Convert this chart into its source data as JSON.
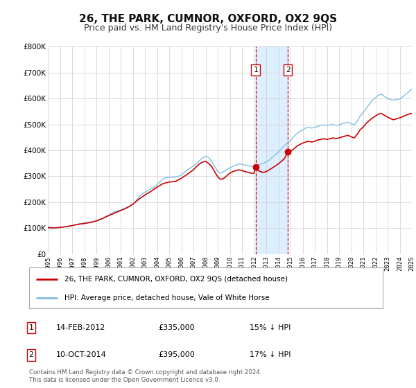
{
  "title": "26, THE PARK, CUMNOR, OXFORD, OX2 9QS",
  "subtitle": "Price paid vs. HM Land Registry's House Price Index (HPI)",
  "title_fontsize": 11,
  "subtitle_fontsize": 9,
  "background_color": "#ffffff",
  "plot_bg_color": "#ffffff",
  "grid_color": "#cccccc",
  "ylim": [
    0,
    800000
  ],
  "yticks": [
    0,
    100000,
    200000,
    300000,
    400000,
    500000,
    600000,
    700000,
    800000
  ],
  "ytick_labels": [
    "£0",
    "£100K",
    "£200K",
    "£300K",
    "£400K",
    "£500K",
    "£600K",
    "£700K",
    "£800K"
  ],
  "xmin_year": 1995,
  "xmax_year": 2025,
  "xticks": [
    1995,
    1996,
    1997,
    1998,
    1999,
    2000,
    2001,
    2002,
    2003,
    2004,
    2005,
    2006,
    2007,
    2008,
    2009,
    2010,
    2011,
    2012,
    2013,
    2014,
    2015,
    2016,
    2017,
    2018,
    2019,
    2020,
    2021,
    2022,
    2023,
    2024,
    2025
  ],
  "hpi_color": "#7fbfdf",
  "price_color": "#cc0000",
  "marker_color": "#cc0000",
  "vline_color": "#cc0000",
  "shade_color": "#ddeeff",
  "transaction1": {
    "date_num": 2012.12,
    "price": 335000,
    "label": "1",
    "date_str": "14-FEB-2012",
    "pct": "15%",
    "direction": "↓"
  },
  "transaction2": {
    "date_num": 2014.78,
    "price": 395000,
    "label": "2",
    "date_str": "10-OCT-2014",
    "pct": "17%",
    "direction": "↓"
  },
  "legend_label_red": "26, THE PARK, CUMNOR, OXFORD, OX2 9QS (detached house)",
  "legend_label_blue": "HPI: Average price, detached house, Vale of White Horse",
  "footer_text": "Contains HM Land Registry data © Crown copyright and database right 2024.\nThis data is licensed under the Open Government Licence v3.0.",
  "hpi_data": [
    [
      1995.0,
      105000
    ],
    [
      1995.25,
      103000
    ],
    [
      1995.5,
      102000
    ],
    [
      1995.75,
      101000
    ],
    [
      1996.0,
      103000
    ],
    [
      1996.25,
      104000
    ],
    [
      1996.5,
      106000
    ],
    [
      1996.75,
      108000
    ],
    [
      1997.0,
      110000
    ],
    [
      1997.25,
      113000
    ],
    [
      1997.5,
      116000
    ],
    [
      1997.75,
      118000
    ],
    [
      1998.0,
      120000
    ],
    [
      1998.25,
      122000
    ],
    [
      1998.5,
      124000
    ],
    [
      1998.75,
      125000
    ],
    [
      1999.0,
      127000
    ],
    [
      1999.25,
      132000
    ],
    [
      1999.5,
      138000
    ],
    [
      1999.75,
      145000
    ],
    [
      2000.0,
      150000
    ],
    [
      2000.25,
      158000
    ],
    [
      2000.5,
      163000
    ],
    [
      2000.75,
      168000
    ],
    [
      2001.0,
      170000
    ],
    [
      2001.25,
      175000
    ],
    [
      2001.5,
      180000
    ],
    [
      2001.75,
      185000
    ],
    [
      2002.0,
      192000
    ],
    [
      2002.25,
      205000
    ],
    [
      2002.5,
      220000
    ],
    [
      2002.75,
      232000
    ],
    [
      2003.0,
      238000
    ],
    [
      2003.25,
      245000
    ],
    [
      2003.5,
      252000
    ],
    [
      2003.75,
      258000
    ],
    [
      2004.0,
      268000
    ],
    [
      2004.25,
      280000
    ],
    [
      2004.5,
      290000
    ],
    [
      2004.75,
      295000
    ],
    [
      2005.0,
      295000
    ],
    [
      2005.25,
      296000
    ],
    [
      2005.5,
      298000
    ],
    [
      2005.75,
      300000
    ],
    [
      2006.0,
      305000
    ],
    [
      2006.25,
      315000
    ],
    [
      2006.5,
      325000
    ],
    [
      2006.75,
      332000
    ],
    [
      2007.0,
      340000
    ],
    [
      2007.25,
      350000
    ],
    [
      2007.5,
      360000
    ],
    [
      2007.75,
      370000
    ],
    [
      2008.0,
      378000
    ],
    [
      2008.25,
      372000
    ],
    [
      2008.5,
      358000
    ],
    [
      2008.75,
      338000
    ],
    [
      2009.0,
      318000
    ],
    [
      2009.25,
      312000
    ],
    [
      2009.5,
      318000
    ],
    [
      2009.75,
      326000
    ],
    [
      2010.0,
      333000
    ],
    [
      2010.25,
      338000
    ],
    [
      2010.5,
      343000
    ],
    [
      2010.75,
      348000
    ],
    [
      2011.0,
      346000
    ],
    [
      2011.25,
      343000
    ],
    [
      2011.5,
      340000
    ],
    [
      2011.75,
      338000
    ],
    [
      2012.0,
      338000
    ],
    [
      2012.25,
      343000
    ],
    [
      2012.5,
      346000
    ],
    [
      2012.75,
      350000
    ],
    [
      2013.0,
      356000
    ],
    [
      2013.25,
      363000
    ],
    [
      2013.5,
      373000
    ],
    [
      2013.75,
      383000
    ],
    [
      2014.0,
      393000
    ],
    [
      2014.25,
      406000
    ],
    [
      2014.5,
      418000
    ],
    [
      2014.75,
      428000
    ],
    [
      2015.0,
      438000
    ],
    [
      2015.25,
      453000
    ],
    [
      2015.5,
      463000
    ],
    [
      2015.75,
      473000
    ],
    [
      2016.0,
      478000
    ],
    [
      2016.25,
      486000
    ],
    [
      2016.5,
      488000
    ],
    [
      2016.75,
      486000
    ],
    [
      2017.0,
      488000
    ],
    [
      2017.25,
      493000
    ],
    [
      2017.5,
      496000
    ],
    [
      2017.75,
      498000
    ],
    [
      2018.0,
      496000
    ],
    [
      2018.25,
      498000
    ],
    [
      2018.5,
      500000
    ],
    [
      2018.75,
      496000
    ],
    [
      2019.0,
      498000
    ],
    [
      2019.25,
      503000
    ],
    [
      2019.5,
      506000
    ],
    [
      2019.75,
      508000
    ],
    [
      2020.0,
      503000
    ],
    [
      2020.25,
      498000
    ],
    [
      2020.5,
      513000
    ],
    [
      2020.75,
      533000
    ],
    [
      2021.0,
      546000
    ],
    [
      2021.25,
      563000
    ],
    [
      2021.5,
      578000
    ],
    [
      2021.75,
      593000
    ],
    [
      2022.0,
      603000
    ],
    [
      2022.25,
      613000
    ],
    [
      2022.5,
      616000
    ],
    [
      2022.75,
      608000
    ],
    [
      2023.0,
      600000
    ],
    [
      2023.25,
      596000
    ],
    [
      2023.5,
      593000
    ],
    [
      2023.75,
      596000
    ],
    [
      2024.0,
      598000
    ],
    [
      2024.25,
      606000
    ],
    [
      2024.5,
      616000
    ],
    [
      2024.75,
      626000
    ],
    [
      2025.0,
      636000
    ]
  ],
  "price_data": [
    [
      1995.0,
      102000
    ],
    [
      1995.5,
      101000
    ],
    [
      1996.0,
      103000
    ],
    [
      1996.5,
      106000
    ],
    [
      1997.0,
      110000
    ],
    [
      1997.5,
      115000
    ],
    [
      1998.0,
      118000
    ],
    [
      1998.5,
      122000
    ],
    [
      1999.0,
      128000
    ],
    [
      1999.5,
      137000
    ],
    [
      2000.0,
      148000
    ],
    [
      2000.5,
      158000
    ],
    [
      2001.0,
      168000
    ],
    [
      2001.5,
      178000
    ],
    [
      2002.0,
      192000
    ],
    [
      2002.5,
      212000
    ],
    [
      2003.0,
      228000
    ],
    [
      2003.5,
      242000
    ],
    [
      2004.0,
      258000
    ],
    [
      2004.5,
      272000
    ],
    [
      2005.0,
      278000
    ],
    [
      2005.5,
      280000
    ],
    [
      2006.0,
      292000
    ],
    [
      2006.5,
      308000
    ],
    [
      2007.0,
      325000
    ],
    [
      2007.25,
      338000
    ],
    [
      2007.5,
      348000
    ],
    [
      2007.75,
      355000
    ],
    [
      2008.0,
      358000
    ],
    [
      2008.25,
      350000
    ],
    [
      2008.5,
      338000
    ],
    [
      2008.75,
      318000
    ],
    [
      2009.0,
      298000
    ],
    [
      2009.25,
      288000
    ],
    [
      2009.5,
      292000
    ],
    [
      2009.75,
      302000
    ],
    [
      2010.0,
      312000
    ],
    [
      2010.25,
      318000
    ],
    [
      2010.5,
      322000
    ],
    [
      2010.75,
      325000
    ],
    [
      2011.0,
      322000
    ],
    [
      2011.25,
      318000
    ],
    [
      2011.5,
      315000
    ],
    [
      2011.75,
      312000
    ],
    [
      2012.0,
      312000
    ],
    [
      2012.12,
      335000
    ],
    [
      2012.25,
      325000
    ],
    [
      2012.5,
      318000
    ],
    [
      2012.75,
      315000
    ],
    [
      2013.0,
      318000
    ],
    [
      2013.25,
      325000
    ],
    [
      2013.5,
      332000
    ],
    [
      2013.75,
      340000
    ],
    [
      2014.0,
      348000
    ],
    [
      2014.25,
      358000
    ],
    [
      2014.5,
      368000
    ],
    [
      2014.78,
      395000
    ],
    [
      2015.0,
      395000
    ],
    [
      2015.25,
      405000
    ],
    [
      2015.5,
      415000
    ],
    [
      2015.75,
      422000
    ],
    [
      2016.0,
      428000
    ],
    [
      2016.25,
      432000
    ],
    [
      2016.5,
      435000
    ],
    [
      2016.75,
      432000
    ],
    [
      2017.0,
      435000
    ],
    [
      2017.25,
      440000
    ],
    [
      2017.5,
      442000
    ],
    [
      2017.75,
      445000
    ],
    [
      2018.0,
      442000
    ],
    [
      2018.25,
      445000
    ],
    [
      2018.5,
      448000
    ],
    [
      2018.75,
      445000
    ],
    [
      2019.0,
      448000
    ],
    [
      2019.25,
      452000
    ],
    [
      2019.5,
      455000
    ],
    [
      2019.75,
      458000
    ],
    [
      2020.0,
      452000
    ],
    [
      2020.25,
      448000
    ],
    [
      2020.5,
      462000
    ],
    [
      2020.75,
      480000
    ],
    [
      2021.0,
      490000
    ],
    [
      2021.25,
      505000
    ],
    [
      2021.5,
      515000
    ],
    [
      2021.75,
      525000
    ],
    [
      2022.0,
      532000
    ],
    [
      2022.25,
      540000
    ],
    [
      2022.5,
      542000
    ],
    [
      2022.75,
      535000
    ],
    [
      2023.0,
      528000
    ],
    [
      2023.25,
      522000
    ],
    [
      2023.5,
      518000
    ],
    [
      2023.75,
      522000
    ],
    [
      2024.0,
      525000
    ],
    [
      2024.25,
      530000
    ],
    [
      2024.5,
      535000
    ],
    [
      2024.75,
      540000
    ],
    [
      2025.0,
      542000
    ]
  ]
}
